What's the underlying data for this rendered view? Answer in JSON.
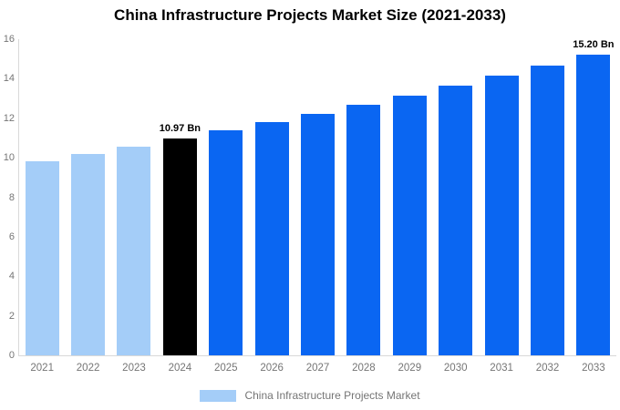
{
  "title": "China Infrastructure Projects Market Size (2021-2033)",
  "colors": {
    "historical": "#a4cdf8",
    "current": "#000000",
    "forecast": "#0a66f2",
    "axis_line": "#d9d9d9",
    "tick_text": "#757575",
    "annotation_text": "#000000",
    "title_text": "#000000",
    "background": "#ffffff"
  },
  "legend": {
    "label": "China Infrastructure Projects Market",
    "swatch_color": "#a4cdf8"
  },
  "chart_data": {
    "type": "bar",
    "title": "China Infrastructure Projects Market Size (2021-2033)",
    "categories": [
      "2021",
      "2022",
      "2023",
      "2024",
      "2025",
      "2026",
      "2027",
      "2028",
      "2029",
      "2030",
      "2031",
      "2032",
      "2033"
    ],
    "values": [
      9.84,
      10.2,
      10.58,
      10.97,
      11.38,
      11.8,
      12.23,
      12.68,
      13.15,
      13.64,
      14.14,
      14.66,
      15.2
    ],
    "bar_color_keys": [
      "historical",
      "historical",
      "historical",
      "current",
      "forecast",
      "forecast",
      "forecast",
      "forecast",
      "forecast",
      "forecast",
      "forecast",
      "forecast",
      "forecast"
    ],
    "annotations": [
      {
        "category": "2024",
        "text": "10.97 Bn"
      },
      {
        "category": "2033",
        "text": "15.20 Bn"
      }
    ],
    "xlabel": "",
    "ylabel": "",
    "ylim": [
      0,
      16
    ],
    "yticks": [
      0,
      2,
      4,
      6,
      8,
      10,
      12,
      14,
      16
    ],
    "grid": false,
    "legend_position": "bottom",
    "unit": "Bn"
  }
}
